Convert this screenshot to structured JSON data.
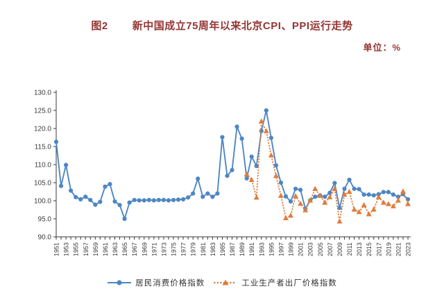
{
  "figure": {
    "label": "图2",
    "title": "新中国成立75周年以来北京CPI、PPI运行走势",
    "unit_label": "单位：%"
  },
  "colors": {
    "title_text": "#943634",
    "axis_text": "#3a3a3a",
    "cpi_blue": "#4d86c4",
    "ppi_orange": "#e07c3c"
  },
  "chart_data": {
    "type": "line",
    "title": "新中国成立75周年以来北京CPI、PPI运行走势",
    "unit": "%",
    "ylim": [
      90,
      130
    ],
    "grid": false,
    "legend_position": "bottom",
    "y_ticks": [
      "90.0",
      "95.0",
      "100.0",
      "105.0",
      "110.0",
      "115.0",
      "120.0",
      "125.0",
      "130.0"
    ],
    "x": [
      1951,
      1952,
      1953,
      1954,
      1955,
      1956,
      1957,
      1958,
      1959,
      1960,
      1961,
      1962,
      1963,
      1964,
      1965,
      1966,
      1967,
      1968,
      1969,
      1970,
      1971,
      1972,
      1973,
      1974,
      1975,
      1976,
      1977,
      1978,
      1979,
      1980,
      1981,
      1982,
      1983,
      1984,
      1985,
      1986,
      1987,
      1988,
      1989,
      1990,
      1991,
      1992,
      1993,
      1994,
      1995,
      1996,
      1997,
      1998,
      1999,
      2000,
      2001,
      2002,
      2003,
      2004,
      2005,
      2006,
      2007,
      2008,
      2009,
      2010,
      2011,
      2012,
      2013,
      2014,
      2015,
      2016,
      2017,
      2018,
      2019,
      2020,
      2021,
      2022,
      2023
    ],
    "x_tick_labels": [
      "1951",
      "1953",
      "1955",
      "1957",
      "1959",
      "1961",
      "1963",
      "1965",
      "1967",
      "1969",
      "1971",
      "1973",
      "1975",
      "1977",
      "1979",
      "1981",
      "1983",
      "1985",
      "1987",
      "1989",
      "1991",
      "1993",
      "1995",
      "1997",
      "1999",
      "2001",
      "2003",
      "2005",
      "2007",
      "2009",
      "2011",
      "2013",
      "2015",
      "2017",
      "2019",
      "2021",
      "2023"
    ],
    "series": [
      {
        "name": "居民消费价格指数",
        "marker": "circle",
        "line_style": "solid",
        "color": "#4d86c4",
        "values": [
          116.3,
          104.1,
          109.9,
          102.8,
          101.0,
          100.4,
          101.1,
          100.2,
          98.9,
          99.7,
          103.9,
          104.6,
          99.8,
          98.8,
          95.0,
          99.5,
          100.2,
          100.1,
          100.1,
          100.2,
          100.1,
          100.2,
          100.2,
          100.1,
          100.2,
          100.3,
          100.4,
          100.9,
          102.0,
          106.1,
          101.1,
          102.0,
          101.1,
          102.0,
          117.6,
          106.9,
          108.5,
          120.5,
          117.2,
          106.2,
          112.2,
          109.6,
          119.3,
          125.0,
          117.4,
          109.8,
          105.0,
          101.2,
          99.8,
          103.3,
          103.0,
          97.8,
          100.1,
          101.1,
          101.5,
          101.1,
          102.2,
          104.9,
          98.0,
          103.3,
          105.8,
          103.3,
          103.2,
          101.7,
          101.7,
          101.5,
          101.8,
          102.4,
          102.4,
          101.7,
          101.1,
          101.8,
          100.4
        ]
      },
      {
        "name": "工业生产者出厂价格指数",
        "marker": "triangle",
        "line_style": "dotted",
        "color": "#e07c3c",
        "values": [
          null,
          null,
          null,
          null,
          null,
          null,
          null,
          null,
          null,
          null,
          null,
          null,
          null,
          null,
          null,
          null,
          null,
          null,
          null,
          null,
          null,
          null,
          null,
          null,
          null,
          null,
          null,
          null,
          null,
          null,
          null,
          null,
          null,
          null,
          null,
          null,
          null,
          null,
          null,
          107.3,
          105.8,
          100.9,
          122.0,
          119.3,
          112.6,
          106.9,
          101.4,
          95.2,
          95.9,
          101.3,
          99.2,
          97.4,
          100.1,
          103.3,
          101.4,
          99.5,
          101.0,
          103.3,
          94.3,
          101.7,
          102.5,
          97.6,
          96.9,
          98.8,
          96.3,
          97.6,
          101.0,
          99.5,
          99.1,
          98.5,
          100.1,
          102.6,
          99.1
        ]
      }
    ]
  }
}
